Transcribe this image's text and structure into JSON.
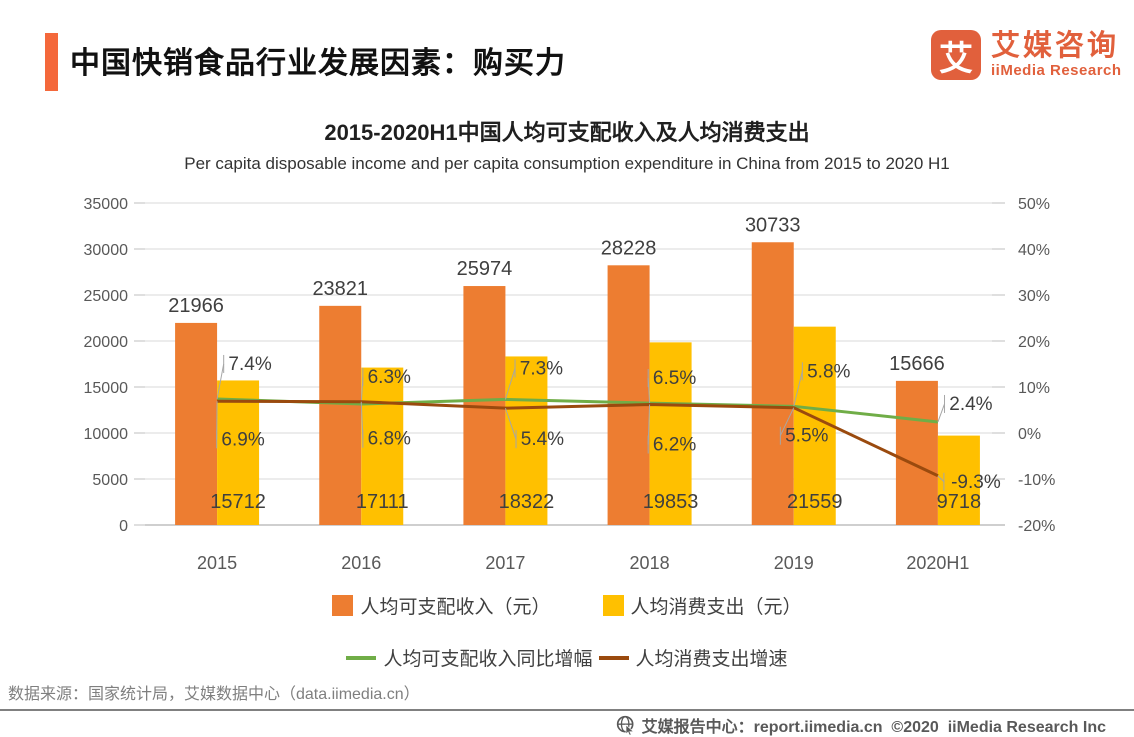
{
  "header": {
    "title": "中国快销食品行业发展因素：购买力",
    "logo": {
      "glyph": "艾",
      "brand_cn": "艾媒咨询",
      "brand_en": "iiMedia Research"
    }
  },
  "chart": {
    "title": "2015-2020H1中国人均可支配收入及人均消费支出",
    "subtitle": "Per capita disposable income and per capita consumption expenditure in China from 2015 to 2020 H1"
  },
  "chart_data": {
    "type": "bar",
    "subtype": "combo-bar-line-dual-axis",
    "categories": [
      "2015",
      "2016",
      "2017",
      "2018",
      "2019",
      "2020H1"
    ],
    "series": [
      {
        "name": "人均可支配收入（元）",
        "kind": "bar",
        "axis": "left",
        "color": "#ED7D31",
        "values": [
          21966,
          23821,
          25974,
          28228,
          30733,
          15666
        ],
        "labels": [
          "21966",
          "23821",
          "25974",
          "28228",
          "30733",
          "15666"
        ]
      },
      {
        "name": "人均消费支出（元）",
        "kind": "bar",
        "axis": "left",
        "color": "#FFC000",
        "values": [
          15712,
          17111,
          18322,
          19853,
          21559,
          9718
        ],
        "labels": [
          "15712",
          "17111",
          "18322",
          "19853",
          "21559",
          "9718"
        ]
      },
      {
        "name": "人均可支配收入同比增幅",
        "kind": "line",
        "axis": "right",
        "color": "#70AD47",
        "values": [
          7.4,
          6.3,
          7.3,
          6.5,
          5.8,
          2.4
        ],
        "labels": [
          "7.4%",
          "6.3%",
          "7.3%",
          "6.5%",
          "5.8%",
          "2.4%"
        ]
      },
      {
        "name": "人均消费支出增速",
        "kind": "line",
        "axis": "right",
        "color": "#9A4A0E",
        "values": [
          6.9,
          6.8,
          5.4,
          6.2,
          5.5,
          -9.3
        ],
        "labels": [
          "6.9%",
          "6.8%",
          "5.4%",
          "6.2%",
          "5.5%",
          "-9.3%"
        ]
      }
    ],
    "left_axis": {
      "min": 0,
      "max": 35000,
      "step": 5000,
      "ticks": [
        "0",
        "5000",
        "10000",
        "15000",
        "20000",
        "25000",
        "30000",
        "35000"
      ]
    },
    "right_axis": {
      "min": -20,
      "max": 50,
      "step": 10,
      "ticks": [
        "-20%",
        "-10%",
        "0%",
        "10%",
        "20%",
        "30%",
        "40%",
        "50%"
      ]
    },
    "grid": true,
    "legend_position": "bottom"
  },
  "source": "数据来源：国家统计局，艾媒数据中心（data.iimedia.cn）",
  "footer": {
    "text": "艾媒报告中心：report.iimedia.cn  ©2020  iiMedia Research Inc"
  }
}
